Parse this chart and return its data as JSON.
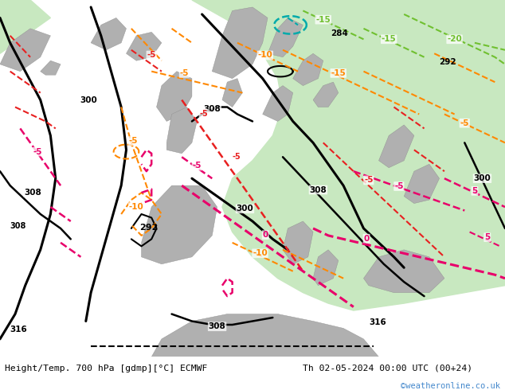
{
  "title_left": "Height/Temp. 700 hPa [gdmp][°C] ECMWF",
  "title_right": "Th 02-05-2024 00:00 UTC (00+24)",
  "copyright": "©weatheronline.co.uk",
  "fig_width": 6.34,
  "fig_height": 4.9,
  "dpi": 100,
  "bg_ocean_west": "#d8d8d8",
  "bg_ocean_east": "#c8e8c0",
  "land_color": "#b0b0b0",
  "land_edge": "#909090",
  "bottom_bar_color": "#ffffff",
  "title_color": "#000000",
  "copyright_color": "#4488cc",
  "font_size_title": 8.2,
  "font_size_copyright": 7.5,
  "orange_color": "#ff8800",
  "pink_color": "#e8006a",
  "red_color": "#e82020",
  "green_color": "#70c030",
  "teal_color": "#00aaaa",
  "black_color": "#000000"
}
